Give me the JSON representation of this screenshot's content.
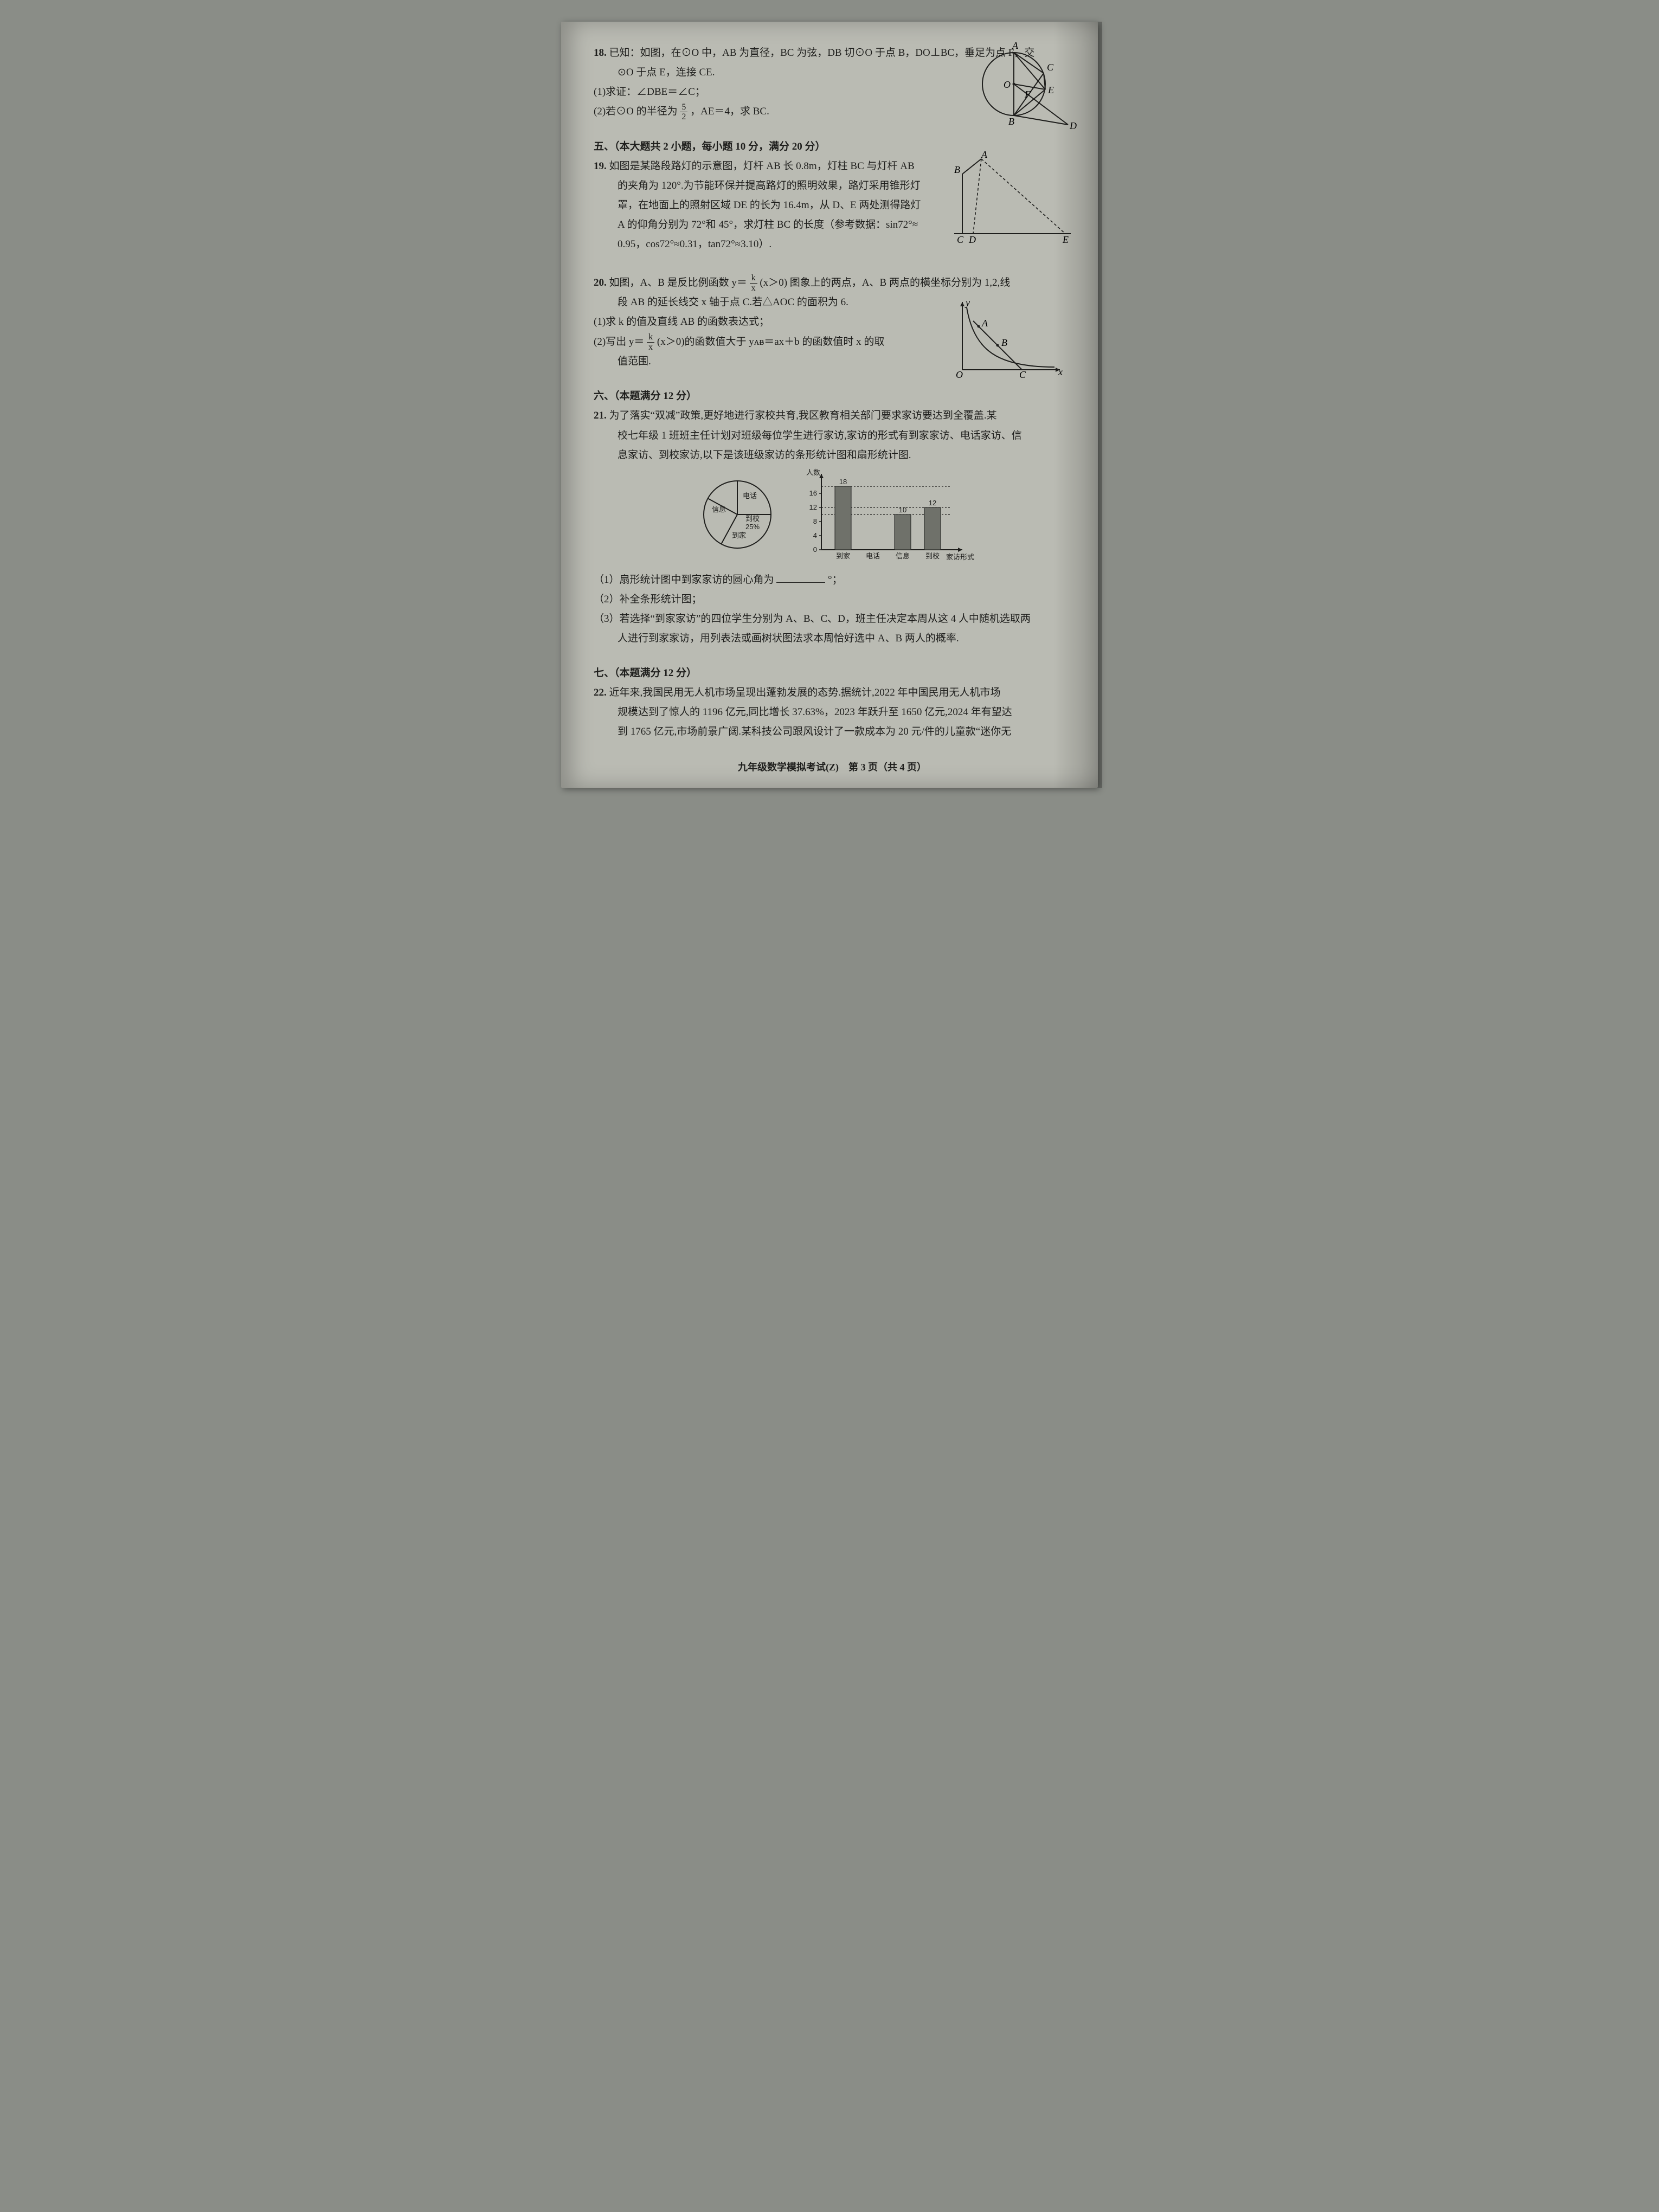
{
  "q18": {
    "num": "18.",
    "stem_a": "已知：如图，在⊙O 中，AB 为直径，BC 为弦，DB 切⊙O 于点 B，DO⊥BC，垂足为点 F，交",
    "stem_b": "⊙O 于点 E，连接 CE.",
    "p1": "(1)求证：∠DBE＝∠C；",
    "p2_a": "(2)若⊙O 的半径为",
    "p2_frac_num": "5",
    "p2_frac_den": "2",
    "p2_b": "，AE＝4，求 BC.",
    "fig": {
      "A": "A",
      "B": "B",
      "C": "C",
      "D": "D",
      "E": "E",
      "F": "F",
      "O": "O"
    }
  },
  "sec5": "五、（本大题共 2 小题，每小题 10 分，满分 20 分）",
  "q19": {
    "num": "19.",
    "l1": "如图是某路段路灯的示意图，灯杆 AB 长 0.8m，灯柱 BC 与灯杆 AB",
    "l2": "的夹角为 120°.为节能环保并提高路灯的照明效果，路灯采用锥形灯",
    "l3": "罩，在地面上的照射区域 DE 的长为 16.4m，从 D、E 两处测得路灯",
    "l4": "A 的仰角分别为 72°和 45°，求灯柱 BC 的长度（参考数据：sin72°≈",
    "l5": "0.95，cos72°≈0.31，tan72°≈3.10）.",
    "fig": {
      "A": "A",
      "B": "B",
      "C": "C",
      "D": "D",
      "E": "E"
    }
  },
  "q20": {
    "num": "20.",
    "l1a": "如图，A、B 是反比例函数 y＝",
    "l1_frac_num": "k",
    "l1_frac_den": "x",
    "l1b": "(x＞0) 图象上的两点，A、B 两点的横坐标分别为 1,2,线",
    "l2": "段 AB 的延长线交 x 轴于点 C.若△AOC 的面积为 6.",
    "p1": "(1)求 k 的值及直线 AB 的函数表达式；",
    "p2a": "(2)写出 y＝",
    "p2_frac_num": "k",
    "p2_frac_den": "x",
    "p2b": "(x＞0)的函数值大于 yᴀᴃ＝ax＋b 的函数值时 x 的取",
    "p3": "值范围.",
    "fig": {
      "A": "A",
      "B": "B",
      "C": "C",
      "O": "O",
      "x": "x",
      "y": "y"
    }
  },
  "sec6": "六、（本题满分 12 分）",
  "q21": {
    "num": "21.",
    "l1": "为了落实“双减”政策,更好地进行家校共育,我区教育相关部门要求家访要达到全覆盖.某",
    "l2": "校七年级 1 班班主任计划对班级每位学生进行家访,家访的形式有到家家访、电话家访、信",
    "l3": "息家访、到校家访,以下是该班级家访的条形统计图和扇形统计图.",
    "pie": {
      "slice1": "电话",
      "slice2": "信息",
      "slice3": "到家",
      "slice4a": "到校",
      "slice4b": "25%"
    },
    "bar": {
      "ylab": "人数",
      "xlab": "家访形式",
      "c1": "到家",
      "c2": "电话",
      "c3": "信息",
      "c4": "到校",
      "yticks": [
        "0",
        "4",
        "8",
        "12",
        "16"
      ],
      "v1": "18",
      "v3": "10",
      "v4": "12",
      "values": [
        18,
        0,
        10,
        12
      ],
      "colors": {
        "bar": "#6f716a",
        "axis": "#1e1e1c",
        "grid_dash": "3,3"
      }
    },
    "p1a": "（1）扇形统计图中到家家访的圆心角为",
    "p1b": "°；",
    "p2": "（2）补全条形统计图；",
    "p3a": "（3）若选择“到家家访”的四位学生分别为 A、B、C、D，班主任决定本周从这 4 人中随机选取两",
    "p3b": "人进行到家家访，用列表法或画树状图法求本周恰好选中 A、B 两人的概率."
  },
  "sec7": "七、（本题满分 12 分）",
  "q22": {
    "num": "22.",
    "l1": "近年来,我国民用无人机市场呈现出蓬勃发展的态势.据统计,2022 年中国民用无人机市场",
    "l2": "规模达到了惊人的 1196 亿元,同比增长 37.63%，2023 年跃升至 1650 亿元,2024 年有望达",
    "l3": "到 1765 亿元,市场前景广阔.某科技公司跟风设计了一款成本为 20 元/件的儿童款“迷你无"
  },
  "footer": "九年级数学模拟考试(Z)　第 3 页（共 4 页）"
}
